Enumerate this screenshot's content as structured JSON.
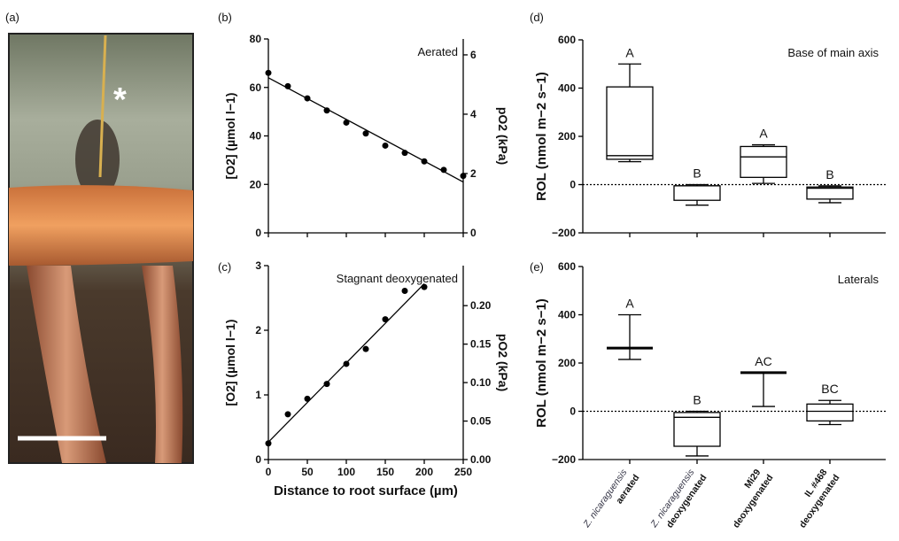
{
  "panels": {
    "a": "(a)",
    "b": "(b)",
    "c": "(c)",
    "d": "(d)",
    "e": "(e)"
  },
  "photo": {
    "marker": "*",
    "colors": {
      "background": "#8f9a86",
      "root": "#d9844a",
      "scale_bar": "#ffffff"
    }
  },
  "chart_data": [
    {
      "id": "b",
      "type": "scatter",
      "annotation": "Aerated",
      "ylabel": "[O2] (µmol l−1)",
      "y2label": "pO2 (kPa)",
      "x": [
        0,
        25,
        50,
        75,
        100,
        125,
        150,
        175,
        200,
        225,
        250
      ],
      "y": [
        66,
        60.5,
        55.5,
        50.5,
        45.5,
        41,
        36,
        33,
        29.5,
        26,
        23.5
      ],
      "fit": {
        "x": [
          0,
          250
        ],
        "y": [
          64,
          21
        ]
      },
      "xlim": [
        0,
        250
      ],
      "ylim": [
        0,
        80
      ],
      "yticks": [
        "0",
        "20",
        "40",
        "60",
        "80"
      ],
      "y2ticks": [
        "0",
        "2",
        "4",
        "6"
      ],
      "y2_per_y": 0.0817
    },
    {
      "id": "c",
      "type": "scatter",
      "annotation": "Stagnant deoxygenated",
      "xlabel": "Distance to root surface (µm)",
      "ylabel": "[O2] (µmol l−1)",
      "y2label": "pO2 (kPa)",
      "x": [
        0,
        25,
        50,
        75,
        100,
        125,
        150,
        175,
        200
      ],
      "y": [
        0.25,
        0.7,
        0.94,
        1.17,
        1.48,
        1.71,
        2.17,
        2.61,
        2.67
      ],
      "fit": {
        "x": [
          0,
          200
        ],
        "y": [
          0.27,
          2.72
        ]
      },
      "xlim": [
        0,
        250
      ],
      "ylim": [
        0,
        3
      ],
      "xticks": [
        "0",
        "50",
        "100",
        "150",
        "200",
        "250"
      ],
      "yticks": [
        "0",
        "1",
        "2",
        "3"
      ],
      "y2ticks": [
        "0.00",
        "0.05",
        "0.10",
        "0.15",
        "0.20"
      ],
      "y2_per_y": 0.084
    },
    {
      "id": "d",
      "type": "box",
      "annotation": "Base of main axis",
      "ylabel": "ROL (nmol m−2 s−1)",
      "ylim": [
        -200,
        600
      ],
      "yticks": [
        "−200",
        "0",
        "200",
        "400",
        "600"
      ],
      "groups": [
        {
          "letter": "A",
          "min": 95,
          "q1": 105,
          "median": 120,
          "q3": 405,
          "max": 500
        },
        {
          "letter": "B",
          "min": -85,
          "q1": -65,
          "median": -5,
          "q3": -5,
          "max": 0
        },
        {
          "letter": "A",
          "min": 5,
          "q1": 30,
          "median": 115,
          "q3": 158,
          "max": 165
        },
        {
          "letter": "B",
          "min": -75,
          "q1": -60,
          "median": -15,
          "q3": -10,
          "max": -5
        }
      ]
    },
    {
      "id": "e",
      "type": "box",
      "annotation": "Laterals",
      "ylabel": "ROL (nmol m−2 s−1)",
      "ylim": [
        -200,
        600
      ],
      "yticks": [
        "−200",
        "0",
        "200",
        "400",
        "600"
      ],
      "categories": [
        {
          "line1": "Z. nicaraguensis",
          "line2": "aerated"
        },
        {
          "line1": "Z. nicaraguensis",
          "line2": "deoxygenated"
        },
        {
          "line1": "Mi29",
          "line2": "deoxygenated"
        },
        {
          "line1": "IL #468",
          "line2": "deoxygenated"
        }
      ],
      "groups": [
        {
          "letter": "A",
          "min": 215,
          "q1": 260,
          "median": 262,
          "q3": 264,
          "max": 400
        },
        {
          "letter": "B",
          "min": -185,
          "q1": -145,
          "median": -25,
          "q3": -5,
          "max": 0
        },
        {
          "letter": "AC",
          "min": 20,
          "q1": 158,
          "median": 160,
          "q3": 160,
          "max": 160
        },
        {
          "letter": "BC",
          "min": -55,
          "q1": -40,
          "median": 0,
          "q3": 30,
          "max": 45
        }
      ]
    }
  ]
}
